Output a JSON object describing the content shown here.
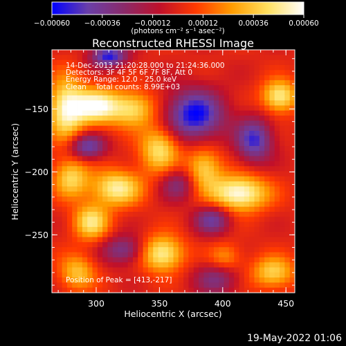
{
  "chart_data": {
    "type": "heatmap",
    "title": "Reconstructed RHESSI Image",
    "xlabel": "Heliocentric X (arcsec)",
    "ylabel": "Heliocentric Y (arcsec)",
    "xlim": [
      265,
      457
    ],
    "ylim": [
      -296,
      -103
    ],
    "xticks": [
      300,
      350,
      400,
      450
    ],
    "xtick_labels": [
      "300",
      "350",
      "400",
      "450"
    ],
    "yticks": [
      -150,
      -200,
      -250
    ],
    "ytick_labels": [
      "−150",
      "−200",
      "−250"
    ],
    "colorbar": {
      "range": [
        -0.0006,
        0.0006
      ],
      "ticks": [
        -0.0006,
        -0.00036,
        -0.00012,
        0.00012,
        0.00036,
        0.0006
      ],
      "tick_labels": [
        "−0.00060",
        "−0.00036",
        "−0.00012",
        "0.00012",
        "0.00036",
        "0.00060"
      ],
      "label": "(photons cm⁻² s⁻¹ asec⁻²)",
      "colors": [
        "#0000ff",
        "#6a3fa8",
        "#8a2a6a",
        "#c0102a",
        "#ff3a00",
        "#ff9c00",
        "#ffe060",
        "#ffffff"
      ]
    },
    "annotations": {
      "line1": "14-Dec-2013 21:20:28.000 to 21:24:36.000",
      "line2": "Detectors: 3F 4F 5F 6F 7F 8F, Att 0",
      "line3": "Energy Range: 12.0 - 25.0 keV",
      "line4": "Clean    Total counts: 8.99E+03",
      "peak": "Position of Peak = [413,-217]"
    },
    "peak_position": [
      413,
      -217
    ],
    "sources": [
      {
        "x": 300,
        "y": -148,
        "value": 0.00058,
        "sx": 14,
        "sy": 10
      },
      {
        "x": 276,
        "y": -150,
        "value": 0.0005,
        "sx": 10,
        "sy": 18
      },
      {
        "x": 330,
        "y": -150,
        "value": 0.0004,
        "sx": 12,
        "sy": 10
      },
      {
        "x": 350,
        "y": -182,
        "value": 0.00045,
        "sx": 11,
        "sy": 13
      },
      {
        "x": 413,
        "y": -217,
        "value": 0.0006,
        "sx": 16,
        "sy": 10
      },
      {
        "x": 385,
        "y": -197,
        "value": 0.0004,
        "sx": 10,
        "sy": 12
      },
      {
        "x": 445,
        "y": -140,
        "value": 0.0005,
        "sx": 10,
        "sy": 9
      },
      {
        "x": 316,
        "y": -213,
        "value": 0.0005,
        "sx": 14,
        "sy": 10
      },
      {
        "x": 280,
        "y": -205,
        "value": 0.0004,
        "sx": 10,
        "sy": 11
      },
      {
        "x": 296,
        "y": -240,
        "value": 0.00045,
        "sx": 10,
        "sy": 10
      },
      {
        "x": 352,
        "y": -265,
        "value": 0.00052,
        "sx": 12,
        "sy": 10
      },
      {
        "x": 440,
        "y": -280,
        "value": 0.0004,
        "sx": 12,
        "sy": 9
      },
      {
        "x": 285,
        "y": -280,
        "value": 0.00035,
        "sx": 10,
        "sy": 10
      },
      {
        "x": 402,
        "y": -268,
        "value": 0.00025,
        "sx": 9,
        "sy": 8
      },
      {
        "x": 310,
        "y": -108,
        "value": -0.00055,
        "sx": 10,
        "sy": 6
      },
      {
        "x": 293,
        "y": -180,
        "value": -0.00045,
        "sx": 10,
        "sy": 7
      },
      {
        "x": 365,
        "y": -210,
        "value": -0.0003,
        "sx": 10,
        "sy": 9
      },
      {
        "x": 378,
        "y": -155,
        "value": -0.0006,
        "sx": 16,
        "sy": 14
      },
      {
        "x": 425,
        "y": -175,
        "value": -0.0005,
        "sx": 10,
        "sy": 12
      },
      {
        "x": 392,
        "y": -238,
        "value": -0.0004,
        "sx": 10,
        "sy": 8
      },
      {
        "x": 322,
        "y": -262,
        "value": -0.00035,
        "sx": 12,
        "sy": 8
      },
      {
        "x": 395,
        "y": -285,
        "value": -0.0003,
        "sx": 12,
        "sy": 9
      }
    ]
  },
  "footer": {
    "timestamp": "19-May-2022 01:06"
  }
}
